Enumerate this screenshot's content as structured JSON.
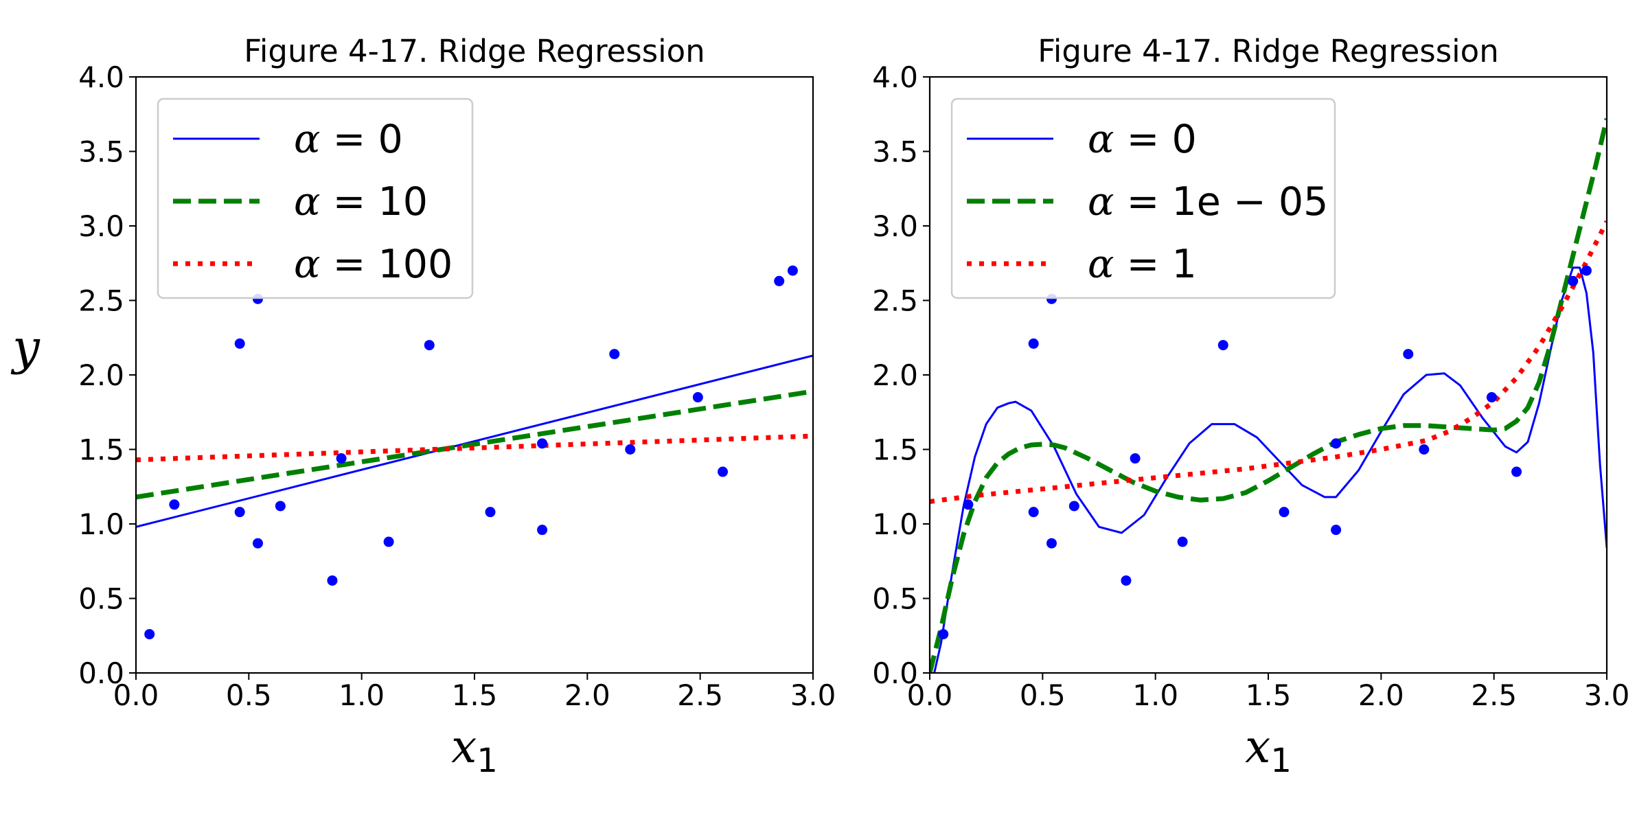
{
  "chart_data": [
    {
      "type": "line",
      "title": "Figure 4-17. Ridge Regression",
      "xlabel": "x1",
      "ylabel": "y",
      "xlim": [
        0.0,
        3.0
      ],
      "ylim": [
        0.0,
        4.0
      ],
      "xticks": [
        "0.0",
        "0.5",
        "1.0",
        "1.5",
        "2.0",
        "2.5",
        "3.0"
      ],
      "yticks": [
        "0.0",
        "0.5",
        "1.0",
        "1.5",
        "2.0",
        "2.5",
        "3.0",
        "3.5",
        "4.0"
      ],
      "grid": false,
      "legend_position": "top-left",
      "scatter": {
        "color": "#0000ff",
        "x": [
          0.06,
          0.17,
          0.46,
          0.46,
          0.54,
          0.54,
          0.64,
          0.87,
          0.91,
          1.12,
          1.3,
          1.57,
          1.8,
          1.8,
          2.12,
          2.19,
          2.49,
          2.6,
          2.85,
          2.91
        ],
        "y": [
          0.26,
          1.13,
          2.21,
          1.08,
          2.51,
          0.87,
          1.12,
          0.62,
          1.44,
          0.88,
          2.2,
          1.08,
          0.96,
          1.54,
          2.14,
          1.5,
          1.85,
          1.35,
          2.63,
          2.7
        ]
      },
      "series": [
        {
          "name": "α = 0",
          "color": "#0000ff",
          "style": "solid",
          "x": [
            0.0,
            3.0
          ],
          "y": [
            0.98,
            2.13
          ]
        },
        {
          "name": "α = 10",
          "color": "#008000",
          "style": "dashed",
          "x": [
            0.0,
            3.0
          ],
          "y": [
            1.18,
            1.89
          ]
        },
        {
          "name": "α = 100",
          "color": "#ff0000",
          "style": "dotted",
          "x": [
            0.0,
            3.0
          ],
          "y": [
            1.43,
            1.59
          ]
        }
      ],
      "legend": [
        {
          "symbol": "α",
          "rest": " = 0"
        },
        {
          "symbol": "α",
          "rest": " = 10"
        },
        {
          "symbol": "α",
          "rest": " = 100"
        }
      ]
    },
    {
      "type": "line",
      "title": "Figure 4-17. Ridge Regression",
      "xlabel": "x1",
      "ylabel": "",
      "xlim": [
        0.0,
        3.0
      ],
      "ylim": [
        0.0,
        4.0
      ],
      "xticks": [
        "0.0",
        "0.5",
        "1.0",
        "1.5",
        "2.0",
        "2.5",
        "3.0"
      ],
      "yticks": [
        "0.0",
        "0.5",
        "1.0",
        "1.5",
        "2.0",
        "2.5",
        "3.0",
        "3.5",
        "4.0"
      ],
      "grid": false,
      "legend_position": "top-left",
      "scatter": {
        "color": "#0000ff",
        "x": [
          0.06,
          0.17,
          0.46,
          0.46,
          0.54,
          0.54,
          0.64,
          0.87,
          0.91,
          1.12,
          1.3,
          1.57,
          1.8,
          1.8,
          2.12,
          2.19,
          2.49,
          2.6,
          2.85,
          2.91
        ],
        "y": [
          0.26,
          1.13,
          2.21,
          1.08,
          2.51,
          0.87,
          1.12,
          0.62,
          1.44,
          0.88,
          2.2,
          1.08,
          0.96,
          1.54,
          2.14,
          1.5,
          1.85,
          1.35,
          2.63,
          2.7
        ]
      },
      "series": [
        {
          "name": "α = 0",
          "color": "#0000ff",
          "style": "solid",
          "x": [
            0.02,
            0.05,
            0.1,
            0.15,
            0.2,
            0.25,
            0.3,
            0.35,
            0.38,
            0.45,
            0.55,
            0.65,
            0.75,
            0.85,
            0.95,
            1.05,
            1.15,
            1.25,
            1.35,
            1.45,
            1.55,
            1.65,
            1.75,
            1.8,
            1.9,
            2.0,
            2.1,
            2.2,
            2.28,
            2.35,
            2.45,
            2.55,
            2.6,
            2.65,
            2.7,
            2.75,
            2.8,
            2.85,
            2.88,
            2.91,
            2.94,
            2.97,
            3.0
          ],
          "y": [
            0.0,
            0.2,
            0.68,
            1.12,
            1.45,
            1.67,
            1.78,
            1.81,
            1.82,
            1.76,
            1.52,
            1.2,
            0.98,
            0.94,
            1.06,
            1.31,
            1.54,
            1.67,
            1.67,
            1.58,
            1.42,
            1.26,
            1.18,
            1.18,
            1.36,
            1.62,
            1.87,
            2.0,
            2.01,
            1.93,
            1.71,
            1.52,
            1.48,
            1.55,
            1.81,
            2.16,
            2.5,
            2.72,
            2.72,
            2.55,
            2.15,
            1.4,
            0.84
          ]
        },
        {
          "name": "α = 1e − 05",
          "color": "#008000",
          "style": "dashed",
          "x": [
            0.0,
            0.05,
            0.1,
            0.15,
            0.2,
            0.25,
            0.3,
            0.35,
            0.4,
            0.45,
            0.5,
            0.55,
            0.6,
            0.7,
            0.8,
            0.9,
            1.0,
            1.1,
            1.2,
            1.3,
            1.4,
            1.5,
            1.6,
            1.7,
            1.8,
            1.9,
            2.0,
            2.1,
            2.2,
            2.3,
            2.4,
            2.5,
            2.55,
            2.6,
            2.65,
            2.7,
            2.75,
            2.8,
            2.85,
            2.9,
            2.95,
            3.0
          ],
          "y": [
            0.0,
            0.3,
            0.64,
            0.93,
            1.15,
            1.31,
            1.41,
            1.47,
            1.51,
            1.53,
            1.535,
            1.53,
            1.51,
            1.44,
            1.36,
            1.28,
            1.22,
            1.18,
            1.16,
            1.17,
            1.21,
            1.29,
            1.38,
            1.47,
            1.55,
            1.6,
            1.64,
            1.66,
            1.66,
            1.65,
            1.64,
            1.63,
            1.64,
            1.69,
            1.78,
            1.95,
            2.2,
            2.5,
            2.8,
            3.1,
            3.4,
            3.72
          ]
        },
        {
          "name": "α = 1",
          "color": "#ff0000",
          "style": "dotted",
          "x": [
            0.0,
            0.2,
            0.4,
            0.6,
            0.8,
            1.0,
            1.2,
            1.4,
            1.6,
            1.8,
            2.0,
            2.2,
            2.3,
            2.4,
            2.5,
            2.6,
            2.7,
            2.8,
            2.9,
            3.0
          ],
          "y": [
            1.15,
            1.19,
            1.22,
            1.25,
            1.28,
            1.31,
            1.34,
            1.37,
            1.41,
            1.45,
            1.5,
            1.56,
            1.62,
            1.71,
            1.82,
            1.98,
            2.19,
            2.45,
            2.73,
            3.03
          ]
        }
      ],
      "legend": [
        {
          "symbol": "α",
          "rest": " = 0"
        },
        {
          "symbol": "α",
          "rest": " = 1e − 05"
        },
        {
          "symbol": "α",
          "rest": " = 1"
        }
      ]
    }
  ]
}
